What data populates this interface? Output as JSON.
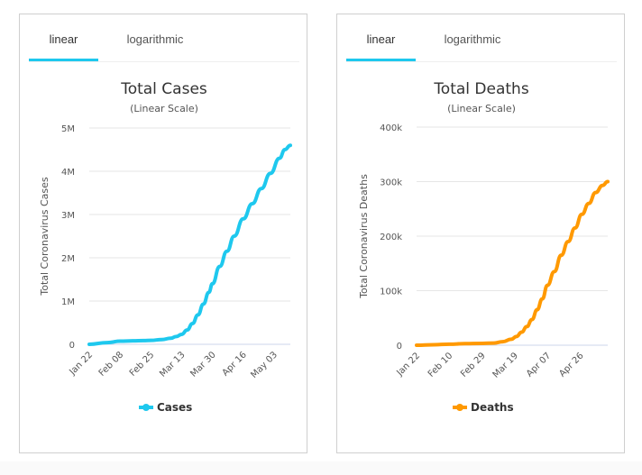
{
  "panels": [
    {
      "tabs": [
        {
          "label": "linear",
          "active": true
        },
        {
          "label": "logarithmic",
          "active": false
        }
      ],
      "accent": "#1ec8ee"
    },
    {
      "tabs": [
        {
          "label": "linear",
          "active": true
        },
        {
          "label": "logarithmic",
          "active": false
        }
      ],
      "accent": "#1ec8ee"
    }
  ],
  "chart_data": [
    {
      "type": "line",
      "title": "Total Cases",
      "subtitle": "(Linear Scale)",
      "xlabel": "",
      "ylabel": "Total Coronavirus Cases",
      "ylim": [
        0,
        5000000
      ],
      "yticks": [
        0,
        1000000,
        2000000,
        3000000,
        4000000,
        5000000
      ],
      "ytick_labels": [
        "0",
        "1M",
        "2M",
        "3M",
        "4M",
        "5M"
      ],
      "xtick_labels": [
        "Jan 22",
        "Feb 08",
        "Feb 25",
        "Mar 13",
        "Mar 30",
        "Apr 16",
        "May 03"
      ],
      "xtick_days": [
        0,
        17,
        34,
        51,
        68,
        85,
        102
      ],
      "x_range_days": [
        0,
        111
      ],
      "grid": true,
      "legend": "bottom-center",
      "series": [
        {
          "name": "Cases",
          "color": "#1ec8ee",
          "x_days": [
            0,
            10,
            17,
            24,
            30,
            34,
            40,
            45,
            48,
            51,
            54,
            57,
            60,
            63,
            66,
            68,
            72,
            76,
            80,
            85,
            90,
            95,
            100,
            105,
            108,
            111
          ],
          "values": [
            560,
            40000,
            73000,
            80000,
            86000,
            90000,
            110000,
            140000,
            180000,
            230000,
            330000,
            480000,
            680000,
            930000,
            1200000,
            1400000,
            1800000,
            2150000,
            2500000,
            2900000,
            3250000,
            3600000,
            3950000,
            4300000,
            4500000,
            4600000
          ]
        }
      ]
    },
    {
      "type": "line",
      "title": "Total Deaths",
      "subtitle": "(Linear Scale)",
      "xlabel": "",
      "ylabel": "Total Coronavirus Deaths",
      "ylim": [
        0,
        400000
      ],
      "yticks": [
        0,
        100000,
        200000,
        300000,
        400000
      ],
      "ytick_labels": [
        "0",
        "100k",
        "200k",
        "300k",
        "400k"
      ],
      "xtick_labels": [
        "Jan 22",
        "Feb 10",
        "Feb 29",
        "Mar 19",
        "Apr 07",
        "Apr 26"
      ],
      "xtick_days": [
        0,
        19,
        38,
        57,
        76,
        95
      ],
      "x_range_days": [
        0,
        111
      ],
      "grid": true,
      "legend": "bottom-center",
      "series": [
        {
          "name": "Deaths",
          "color": "#ff9900",
          "x_days": [
            0,
            10,
            19,
            28,
            38,
            45,
            50,
            55,
            58,
            61,
            64,
            67,
            70,
            73,
            76,
            80,
            84,
            88,
            92,
            96,
            100,
            104,
            108,
            111
          ],
          "values": [
            17,
            900,
            1800,
            2900,
            3300,
            4000,
            6500,
            11000,
            16000,
            24000,
            34000,
            47000,
            65000,
            85000,
            110000,
            135000,
            165000,
            190000,
            215000,
            240000,
            260000,
            280000,
            293000,
            300000
          ]
        }
      ]
    }
  ]
}
